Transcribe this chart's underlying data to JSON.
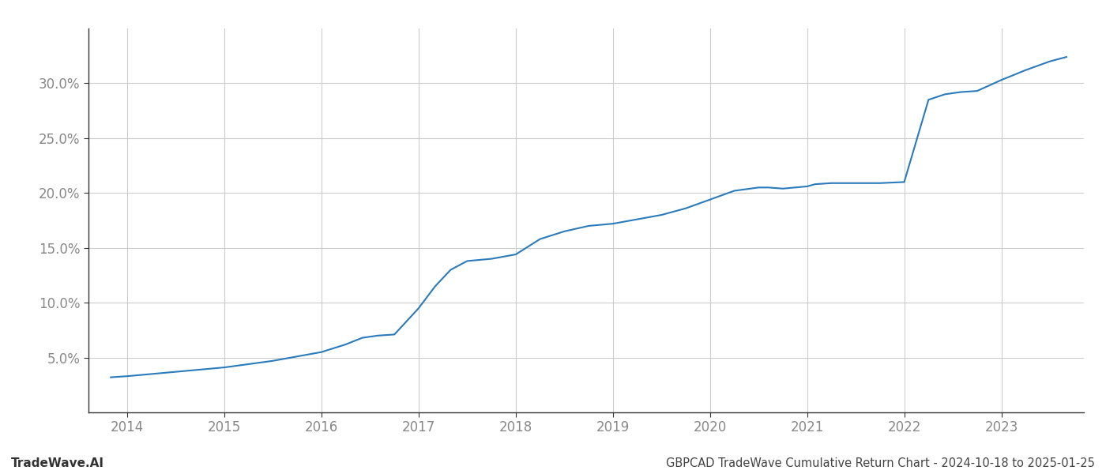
{
  "title": "GBPCAD TradeWave Cumulative Return Chart - 2024-10-18 to 2025-01-25",
  "watermark": "TradeWave.AI",
  "line_color": "#2b7bba",
  "line_width": 1.5,
  "background_color": "#ffffff",
  "grid_color": "#cccccc",
  "x_years": [
    2014,
    2015,
    2016,
    2017,
    2018,
    2019,
    2020,
    2021,
    2022,
    2023
  ],
  "x_data": [
    2013.83,
    2014.0,
    2014.25,
    2014.5,
    2014.75,
    2015.0,
    2015.25,
    2015.5,
    2015.75,
    2016.0,
    2016.25,
    2016.42,
    2016.58,
    2016.75,
    2017.0,
    2017.17,
    2017.33,
    2017.5,
    2017.75,
    2018.0,
    2018.25,
    2018.5,
    2018.75,
    2019.0,
    2019.25,
    2019.5,
    2019.75,
    2020.0,
    2020.25,
    2020.5,
    2020.6,
    2020.75,
    2021.0,
    2021.08,
    2021.25,
    2021.5,
    2021.75,
    2022.0,
    2022.25,
    2022.42,
    2022.58,
    2022.75,
    2023.0,
    2023.25,
    2023.5,
    2023.67
  ],
  "y_data": [
    3.2,
    3.3,
    3.5,
    3.7,
    3.9,
    4.1,
    4.4,
    4.7,
    5.1,
    5.5,
    6.2,
    6.8,
    7.0,
    7.1,
    9.5,
    11.5,
    13.0,
    13.8,
    14.0,
    14.4,
    15.8,
    16.5,
    17.0,
    17.2,
    17.6,
    18.0,
    18.6,
    19.4,
    20.2,
    20.5,
    20.5,
    20.4,
    20.6,
    20.8,
    20.9,
    20.9,
    20.9,
    21.0,
    28.5,
    29.0,
    29.2,
    29.3,
    30.3,
    31.2,
    32.0,
    32.4
  ],
  "ylim": [
    0,
    35
  ],
  "xlim": [
    2013.6,
    2023.85
  ],
  "yticks": [
    5.0,
    10.0,
    15.0,
    20.0,
    25.0,
    30.0
  ],
  "ytick_labels": [
    "5.0%",
    "10.0%",
    "15.0%",
    "20.0%",
    "25.0%",
    "30.0%"
  ],
  "title_fontsize": 10.5,
  "watermark_fontsize": 11,
  "tick_fontsize": 12,
  "tick_color": "#888888",
  "title_color": "#444444",
  "watermark_color": "#333333",
  "spine_color": "#333333"
}
